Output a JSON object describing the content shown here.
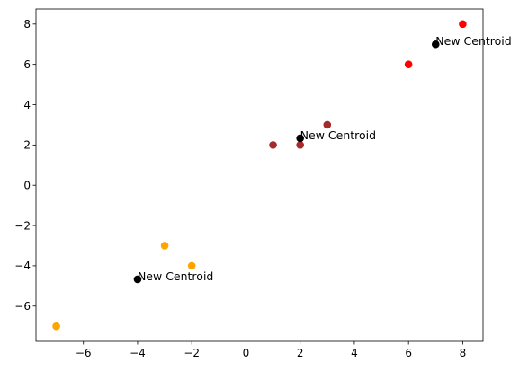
{
  "chart_data": {
    "type": "scatter",
    "title": "",
    "xlabel": "",
    "ylabel": "",
    "xlim": [
      -7.75,
      8.75
    ],
    "ylim": [
      -7.75,
      8.75
    ],
    "xticks": [
      -6,
      -4,
      -2,
      0,
      2,
      4,
      6,
      8
    ],
    "yticks": [
      -6,
      -4,
      -2,
      0,
      2,
      4,
      6,
      8
    ],
    "grid": false,
    "series": [
      {
        "color": "#ffa500",
        "points": [
          {
            "x": -7,
            "y": -7
          },
          {
            "x": -3,
            "y": -3
          },
          {
            "x": -2,
            "y": -4
          }
        ]
      },
      {
        "color": "#a52a2a",
        "points": [
          {
            "x": 1,
            "y": 2
          },
          {
            "x": 2,
            "y": 2
          },
          {
            "x": 3,
            "y": 3
          }
        ]
      },
      {
        "color": "#ff0000",
        "points": [
          {
            "x": 6,
            "y": 6
          },
          {
            "x": 8,
            "y": 8
          }
        ]
      },
      {
        "color": "#000000",
        "points": [
          {
            "x": -4,
            "y": -4.67
          },
          {
            "x": 2,
            "y": 2.33
          },
          {
            "x": 7,
            "y": 7
          }
        ]
      }
    ],
    "annotations": [
      {
        "text": "New Centroid",
        "x": -4,
        "y": -4.67
      },
      {
        "text": "New Centroid",
        "x": 2,
        "y": 2.33
      },
      {
        "text": "New Centroid",
        "x": 7,
        "y": 7
      }
    ]
  }
}
